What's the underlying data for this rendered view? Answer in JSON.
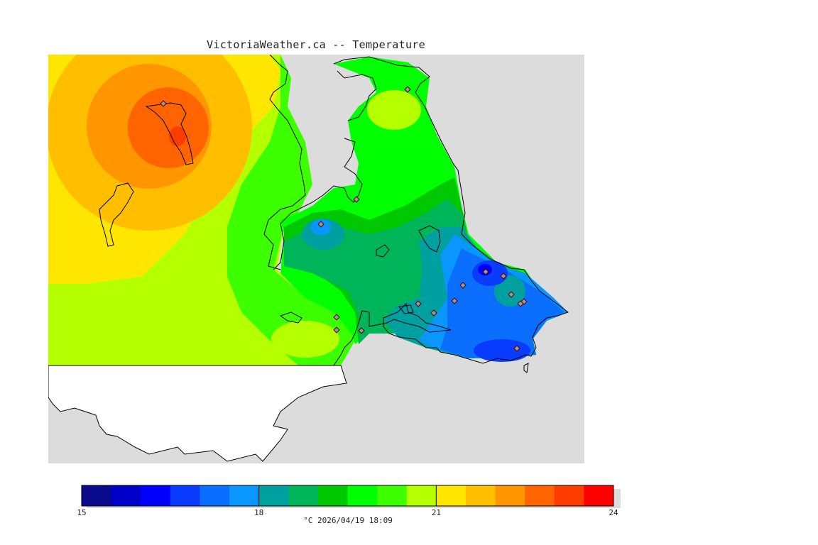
{
  "title": "VictoriaWeather.ca -- Temperature",
  "legend": {
    "min": 15,
    "max": 24,
    "tick_labels": [
      "15",
      "18",
      "21",
      "24"
    ],
    "caption": "°C  2026/04/19 18:09",
    "colors": [
      "#0a0a8c",
      "#0000c8",
      "#0000ff",
      "#0a3cff",
      "#0a6eff",
      "#0a96ff",
      "#00a0a0",
      "#00b45a",
      "#00c800",
      "#00ff00",
      "#3cff00",
      "#b4ff00",
      "#ffe600",
      "#ffbe00",
      "#ff9600",
      "#ff6400",
      "#ff3c00",
      "#ff0000"
    ]
  },
  "map": {
    "background_color": "#dcdcdc",
    "station_count": 17,
    "hot_spot_icon": "station-marker-icon"
  }
}
